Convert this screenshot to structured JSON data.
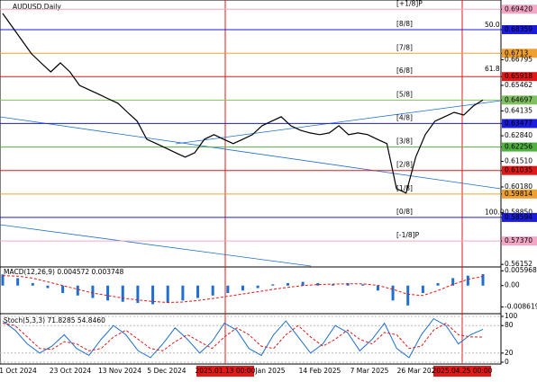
{
  "chart_data": {
    "type": "line",
    "title": "AUDUSD,Daily",
    "price": {
      "name": "AUDUSD",
      "color": "#000000",
      "values": [
        0.692,
        0.685,
        0.678,
        0.671,
        0.6663,
        0.6616,
        0.6663,
        0.6616,
        0.6546,
        0.6523,
        0.65,
        0.6476,
        0.6453,
        0.6406,
        0.636,
        0.6266,
        0.6243,
        0.622,
        0.6196,
        0.6173,
        0.6196,
        0.6266,
        0.629,
        0.6266,
        0.6243,
        0.6266,
        0.629,
        0.6336,
        0.636,
        0.6383,
        0.6336,
        0.6313,
        0.6299,
        0.629,
        0.6299,
        0.6336,
        0.629,
        0.6299,
        0.629,
        0.6266,
        0.6243,
        0.6009,
        0.5986,
        0.6173,
        0.629,
        0.636,
        0.6383,
        0.6406,
        0.6392,
        0.6439,
        0.647
      ]
    },
    "ylim": [
      0.5602,
      0.699
    ],
    "yticks": [
      {
        "value": 0.6942,
        "label": "0.69420"
      },
      0.68359,
      0.6713,
      0.66795,
      0.65918,
      0.65462,
      0.64697,
      0.64135,
      0.63477,
      {
        "value": 0.6284,
        "label": "0.62840"
      },
      0.62256,
      {
        "value": 0.6151,
        "label": "0.61510"
      },
      0.61035,
      {
        "value": 0.6018,
        "label": "0.60180"
      },
      0.59814,
      {
        "value": 0.5885,
        "label": "0.58850"
      },
      0.58594,
      {
        "value": 0.5737,
        "label": "0.57370"
      },
      0.56152
    ],
    "levels": [
      {
        "name": "[+1/8]P",
        "value": 0.6942,
        "color": "#f4a6c6"
      },
      {
        "name": "[8/8]",
        "value": 0.68359,
        "color": "#1c1cdc"
      },
      {
        "name": "[7/8]",
        "value": 0.6713,
        "color": "#f0a030"
      },
      {
        "name": "[6/8]",
        "value": 0.65918,
        "color": "#e01818"
      },
      {
        "name": "[5/8]",
        "value": 0.64697,
        "color": "#80c060"
      },
      {
        "name": "[4/8]",
        "value": 0.63477,
        "color": "#1c1cdc"
      },
      {
        "name": "[3/8]",
        "value": 0.62256,
        "color": "#50b040"
      },
      {
        "name": "[2/8]",
        "value": 0.61035,
        "color": "#e01818"
      },
      {
        "name": "[1/8]",
        "value": 0.59814,
        "color": "#f0a030"
      },
      {
        "name": "[0/8]",
        "value": 0.58594,
        "color": "#1c1cdc"
      },
      {
        "name": "[-1/8]P",
        "value": 0.5737,
        "color": "#f4a6c6"
      }
    ],
    "annotations": [
      "50.0",
      "61.8",
      "100.0"
    ],
    "x_labels": [
      "1 Oct 2024",
      "23 Oct 2024",
      "13 Nov 2024",
      "5 Dec 2024",
      "2025.01.13 00:00",
      "Jan 2025",
      "14 Feb 2025",
      "7 Mar 2025",
      "26 Mar 202",
      "2025.04.25 00:00"
    ],
    "macd": {
      "label": "MACD(12,26,9) 0.004572 0.003748",
      "ylim": [
        -0.01131,
        0.0075
      ],
      "yticks": [
        0.005968,
        {
          "value": 0,
          "label": "0.00"
        },
        -0.008619
      ],
      "histogram": {
        "color": "#1e6fd0",
        "values": [
          0.0045,
          0.003,
          0.001,
          -0.001,
          -0.003,
          -0.004,
          -0.005,
          -0.006,
          -0.0065,
          -0.007,
          -0.0075,
          -0.007,
          -0.006,
          -0.005,
          -0.004,
          -0.003,
          -0.002,
          -0.001,
          0.0005,
          0.001,
          0.0015,
          0.001,
          0.0005,
          0.001,
          0.0005,
          -0.002,
          -0.006,
          -0.008,
          -0.003,
          0.001,
          0.003,
          0.004,
          0.0046
        ]
      },
      "signal": {
        "color": "#e01818",
        "values": [
          0.004,
          0.0038,
          0.003,
          0.0015,
          0,
          -0.0015,
          -0.003,
          -0.004,
          -0.005,
          -0.0058,
          -0.0064,
          -0.0068,
          -0.0066,
          -0.006,
          -0.0052,
          -0.0043,
          -0.0034,
          -0.0025,
          -0.0015,
          -0.0007,
          0,
          0.0004,
          0.0006,
          0.0007,
          0.0007,
          0.0001,
          -0.0015,
          -0.0035,
          -0.004,
          -0.002,
          0.0005,
          0.0025,
          0.0037
        ]
      }
    },
    "stoch": {
      "label": "Stoch(5,3,3) 71.8285 54.8460",
      "ylim": [
        0,
        100
      ],
      "yticks": [
        100,
        80,
        20,
        0
      ],
      "main": {
        "color": "#1e6fd0",
        "values": [
          90,
          70,
          40,
          20,
          35,
          60,
          30,
          15,
          50,
          80,
          60,
          25,
          10,
          40,
          75,
          50,
          20,
          45,
          85,
          70,
          30,
          15,
          60,
          90,
          55,
          20,
          40,
          80,
          65,
          25,
          50,
          85,
          30,
          10,
          60,
          95,
          80,
          40,
          60,
          71.8285
        ]
      },
      "signal": {
        "color": "#e01818",
        "values": [
          85,
          80,
          55,
          30,
          28,
          45,
          40,
          25,
          30,
          55,
          70,
          50,
          30,
          25,
          45,
          60,
          45,
          30,
          55,
          75,
          60,
          35,
          30,
          60,
          80,
          55,
          35,
          50,
          70,
          50,
          40,
          65,
          60,
          30,
          35,
          70,
          85,
          60,
          55,
          54.846
        ]
      }
    }
  }
}
